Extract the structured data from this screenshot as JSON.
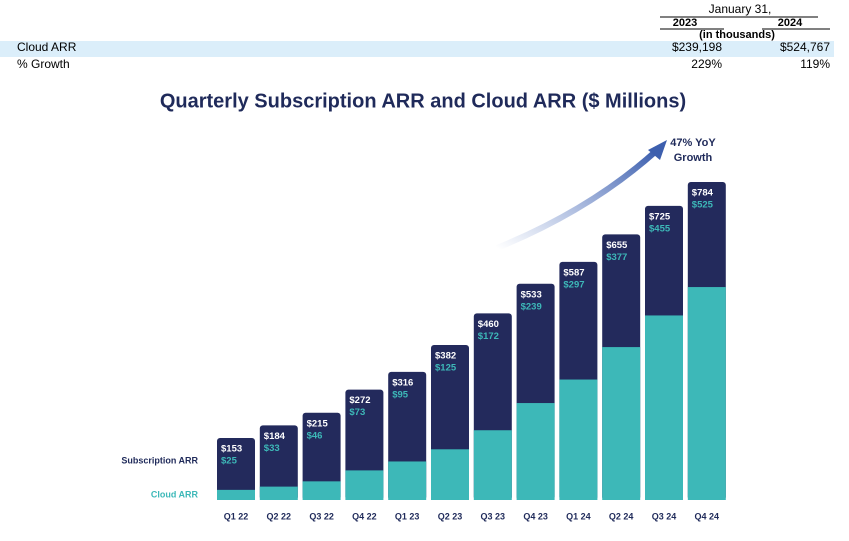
{
  "table": {
    "header": "January 31,",
    "columns": [
      "2023",
      "2024"
    ],
    "units": "(in thousands)",
    "rows": [
      [
        "Cloud ARR",
        "$239,198",
        "$524,767"
      ],
      [
        "% Growth",
        "229%",
        "119%"
      ]
    ]
  },
  "chart_data": {
    "type": "bar",
    "title": "Quarterly Subscription ARR and Cloud ARR ($ Millions)",
    "annotation_lines": [
      "47% YoY",
      "Growth"
    ],
    "categories": [
      "Q1 22",
      "Q2 22",
      "Q3 22",
      "Q4 22",
      "Q1 23",
      "Q2 23",
      "Q3 23",
      "Q4 23",
      "Q1 24",
      "Q2 24",
      "Q3 24",
      "Q4 24"
    ],
    "series": [
      {
        "name": "Subscription ARR",
        "color": "#232a5c",
        "label_color": "#ffffff",
        "values": [
          153,
          184,
          215,
          272,
          316,
          382,
          460,
          533,
          587,
          655,
          725,
          784
        ],
        "value_labels": [
          "$153",
          "$184",
          "$215",
          "$272",
          "$316",
          "$382",
          "$460",
          "$533",
          "$587",
          "$655",
          "$725",
          "$784"
        ]
      },
      {
        "name": "Cloud ARR",
        "color": "#3db8b8",
        "label_color": "#3db8b8",
        "values": [
          25,
          33,
          46,
          73,
          95,
          125,
          172,
          239,
          297,
          377,
          455,
          525
        ],
        "value_labels": [
          "$25",
          "$33",
          "$46",
          "$73",
          "$95",
          "$125",
          "$172",
          "$239",
          "$297",
          "$377",
          "$455",
          "$525"
        ]
      }
    ]
  }
}
